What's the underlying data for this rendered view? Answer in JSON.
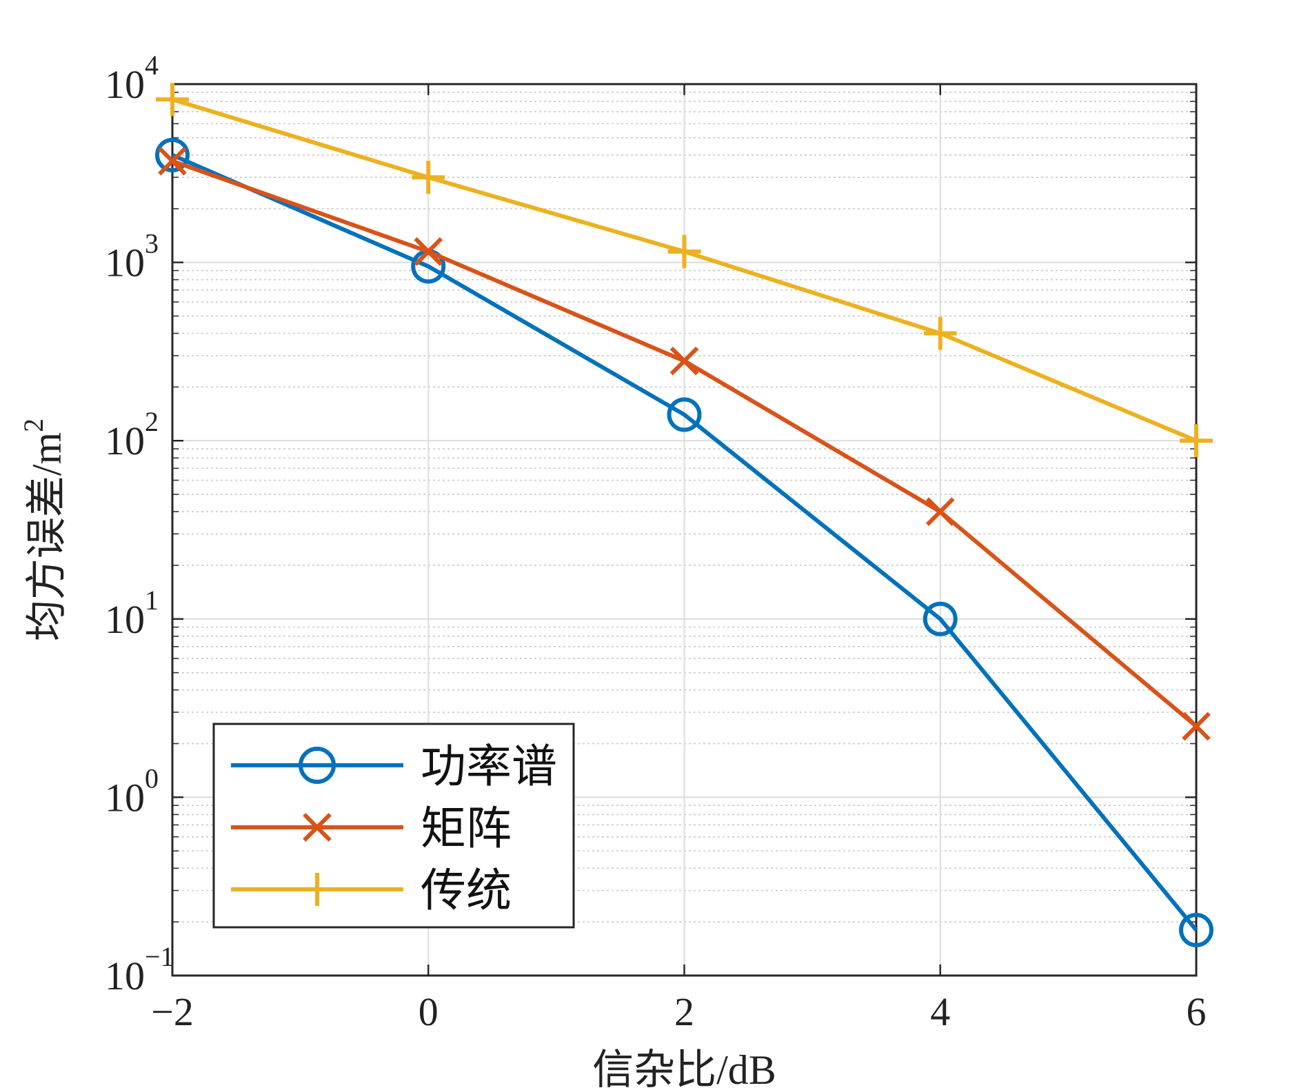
{
  "chart_data": {
    "type": "line",
    "title": "",
    "xlabel": "信杂比/dB",
    "ylabel": "均方误差/m",
    "ylabel_sup": "2",
    "x": [
      -2,
      0,
      2,
      4,
      6
    ],
    "xlim": [
      -2,
      6
    ],
    "xticks": [
      -2,
      0,
      2,
      4,
      6
    ],
    "xtick_labels": [
      "−2",
      "0",
      "2",
      "4",
      "6"
    ],
    "yscale": "log",
    "ylim": [
      0.1,
      10000
    ],
    "yticks": [
      {
        "base": "10",
        "exp": "−1"
      },
      {
        "base": "10",
        "exp": "0"
      },
      {
        "base": "10",
        "exp": "1"
      },
      {
        "base": "10",
        "exp": "2"
      },
      {
        "base": "10",
        "exp": "3"
      },
      {
        "base": "10",
        "exp": "4"
      }
    ],
    "grid": true,
    "minor_grid": true,
    "legend_position": "bottom-left",
    "series": [
      {
        "name": "功率谱",
        "marker": "circle",
        "color": "#0072BD",
        "values": [
          4000,
          950,
          140,
          10,
          0.18
        ]
      },
      {
        "name": "矩阵",
        "marker": "x",
        "color": "#D95319",
        "values": [
          3700,
          1150,
          280,
          40,
          2.5
        ]
      },
      {
        "name": "传统",
        "marker": "plus",
        "color": "#EDB120",
        "values": [
          8200,
          3000,
          1150,
          400,
          100
        ]
      }
    ]
  }
}
